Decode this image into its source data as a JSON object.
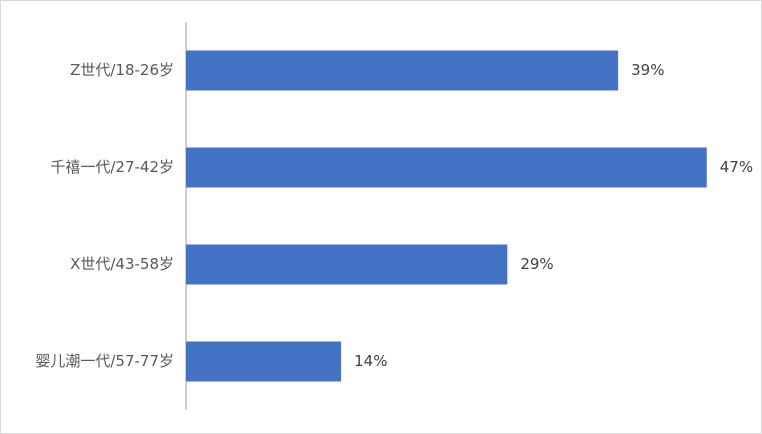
{
  "chart_data": {
    "type": "bar",
    "orientation": "horizontal",
    "categories": [
      "Z世代/18-26岁",
      "千禧一代/27-42岁",
      "X世代/43-58岁",
      "婴儿潮一代/57-77岁"
    ],
    "values": [
      39,
      47,
      29,
      14
    ],
    "value_labels": [
      "39%",
      "47%",
      "29%",
      "14%"
    ],
    "color": "#4472c4"
  }
}
